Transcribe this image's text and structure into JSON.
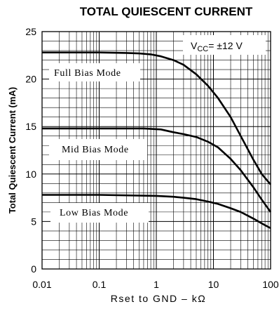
{
  "chart_data": {
    "type": "line",
    "title": "TOTAL QUIESCENT CURRENT",
    "xlabel": "Rset to GND – kΩ",
    "ylabel": "Total Quiescent Current (mA)",
    "x_scale": "log",
    "xlim": [
      0.01,
      100
    ],
    "ylim": [
      0,
      25
    ],
    "x_ticks": [
      "0.01",
      "0.1",
      "1",
      "10",
      "100"
    ],
    "y_ticks": [
      "0",
      "5",
      "10",
      "15",
      "20",
      "25"
    ],
    "grid": true,
    "annotation": {
      "prefix": "V",
      "sub": "CC",
      "suffix": "= ±12 V"
    },
    "series": [
      {
        "name": "Full Bias Mode",
        "x": [
          0.01,
          0.1,
          0.3,
          0.5,
          0.8,
          1.2,
          2,
          3,
          5,
          8,
          12,
          20,
          30,
          50,
          70,
          100
        ],
        "y": [
          22.8,
          22.8,
          22.75,
          22.7,
          22.6,
          22.4,
          22.0,
          21.5,
          20.5,
          19.3,
          18.0,
          16.0,
          14.0,
          11.5,
          10.0,
          8.9
        ]
      },
      {
        "name": "Mid Bias Mode",
        "x": [
          0.01,
          0.1,
          0.6,
          1.2,
          2,
          3,
          5,
          8,
          12,
          20,
          30,
          50,
          70,
          100
        ],
        "y": [
          14.8,
          14.8,
          14.8,
          14.7,
          14.4,
          14.2,
          13.9,
          13.4,
          12.8,
          11.6,
          10.4,
          8.6,
          7.3,
          6.0
        ]
      },
      {
        "name": "Low Bias Mode",
        "x": [
          0.01,
          0.1,
          1,
          2,
          3,
          5,
          8,
          12,
          20,
          30,
          50,
          70,
          100
        ],
        "y": [
          7.8,
          7.8,
          7.7,
          7.6,
          7.5,
          7.35,
          7.1,
          6.85,
          6.4,
          6.0,
          5.3,
          4.8,
          4.3
        ]
      }
    ]
  }
}
